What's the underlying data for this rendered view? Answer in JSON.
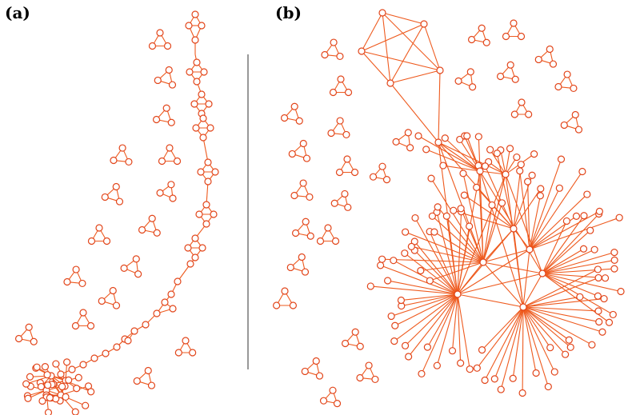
{
  "panels": [
    {
      "id": "a",
      "label": "(a)"
    },
    {
      "id": "b",
      "label": "(b)"
    }
  ],
  "colors": {
    "edge": "#ee5a1e",
    "node_stroke": "#e2451a",
    "node_fill": "#ffffff",
    "divider": "#555555"
  }
}
